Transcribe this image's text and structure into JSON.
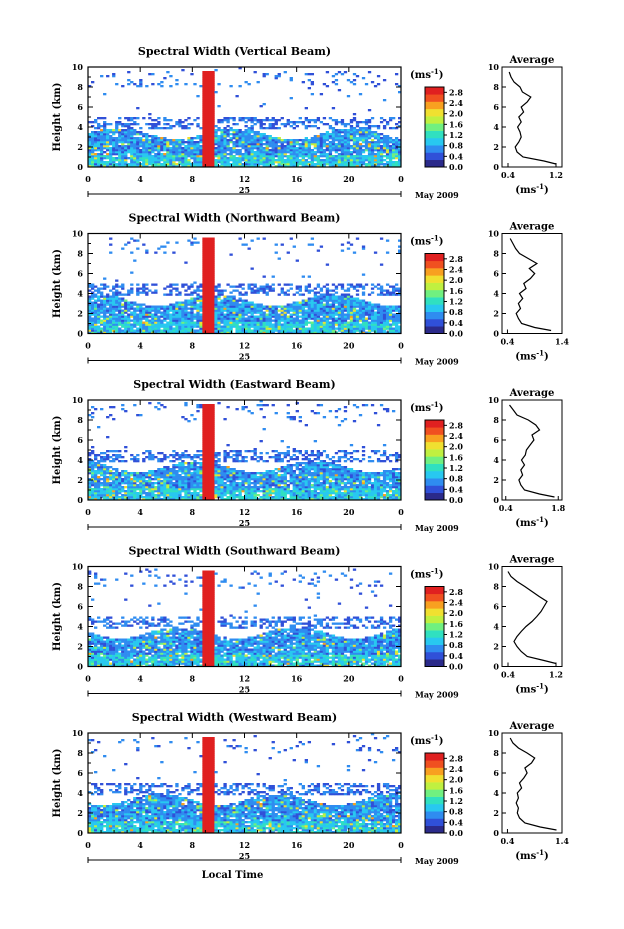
{
  "chart_data": {
    "type": "heatmap",
    "shared": {
      "xlabel": "Local Time",
      "ylabel": "Height (km)",
      "x_ticks": [
        "0",
        "4",
        "8",
        "12",
        "16",
        "20",
        "0"
      ],
      "x_range": [
        0,
        24
      ],
      "y_ticks": [
        "0",
        "2",
        "4",
        "6",
        "8",
        "10"
      ],
      "y_range": [
        0,
        10
      ],
      "day_label": "25",
      "month_label": "May 2009",
      "colorbar_unit": "(ms",
      "colorbar_unit_exp": "-1",
      "colorbar_unit_close": ")",
      "colorbar_ticks": [
        "0.0",
        "0.4",
        "0.8",
        "1.2",
        "1.6",
        "2.0",
        "2.4",
        "2.8"
      ],
      "colorbar_range": [
        0,
        3.0
      ],
      "colormap": [
        "#2b2a8a",
        "#3050d8",
        "#2f8cf0",
        "#28c8f0",
        "#30e0c0",
        "#70f080",
        "#c0f040",
        "#f0e030",
        "#f8a020",
        "#f05020",
        "#e02020"
      ],
      "avg_title": "Average",
      "avg_xlabel": "(ms",
      "avg_xlabel_exp": "-1",
      "avg_xlabel_close": ")",
      "avg_y_ticks": [
        "0",
        "2",
        "4",
        "6",
        "8",
        "10"
      ],
      "avg_y_range": [
        0,
        10
      ]
    },
    "panels": [
      {
        "title": "Spectral Width (Vertical Beam)",
        "avg_x_ticks": [
          "0.4",
          "1.2"
        ],
        "avg_x_range": [
          0.3,
          1.3
        ],
        "avg_profile": [
          [
            1.2,
            0.3
          ],
          [
            1.0,
            0.6
          ],
          [
            0.65,
            1.0
          ],
          [
            0.55,
            1.5
          ],
          [
            0.52,
            2.0
          ],
          [
            0.58,
            2.5
          ],
          [
            0.62,
            3.0
          ],
          [
            0.6,
            3.5
          ],
          [
            0.56,
            4.0
          ],
          [
            0.62,
            4.5
          ],
          [
            0.58,
            5.0
          ],
          [
            0.66,
            5.5
          ],
          [
            0.62,
            6.0
          ],
          [
            0.72,
            6.5
          ],
          [
            0.78,
            7.0
          ],
          [
            0.64,
            7.5
          ],
          [
            0.6,
            8.0
          ],
          [
            0.5,
            8.5
          ],
          [
            0.45,
            9.0
          ],
          [
            0.42,
            9.5
          ]
        ]
      },
      {
        "title": "Spectral Width (Northward Beam)",
        "avg_x_ticks": [
          "0.4",
          "1.4"
        ],
        "avg_x_range": [
          0.3,
          1.4
        ],
        "avg_profile": [
          [
            1.2,
            0.3
          ],
          [
            0.9,
            0.6
          ],
          [
            0.66,
            1.0
          ],
          [
            0.6,
            1.5
          ],
          [
            0.56,
            2.0
          ],
          [
            0.64,
            2.5
          ],
          [
            0.6,
            3.0
          ],
          [
            0.68,
            3.5
          ],
          [
            0.62,
            4.0
          ],
          [
            0.74,
            4.5
          ],
          [
            0.7,
            5.0
          ],
          [
            0.82,
            5.5
          ],
          [
            0.9,
            6.0
          ],
          [
            0.8,
            6.5
          ],
          [
            0.94,
            7.0
          ],
          [
            0.78,
            7.5
          ],
          [
            0.62,
            8.0
          ],
          [
            0.55,
            8.5
          ],
          [
            0.5,
            9.0
          ],
          [
            0.45,
            9.5
          ]
        ]
      },
      {
        "title": "Spectral Width (Eastward Beam)",
        "avg_x_ticks": [
          "0.4",
          "1.8"
        ],
        "avg_x_range": [
          0.3,
          1.9
        ],
        "avg_profile": [
          [
            1.7,
            0.3
          ],
          [
            1.3,
            0.6
          ],
          [
            0.9,
            1.0
          ],
          [
            0.8,
            1.5
          ],
          [
            0.75,
            2.0
          ],
          [
            0.85,
            2.5
          ],
          [
            0.8,
            3.0
          ],
          [
            0.9,
            3.5
          ],
          [
            0.82,
            4.0
          ],
          [
            0.92,
            4.5
          ],
          [
            0.95,
            5.0
          ],
          [
            1.05,
            5.5
          ],
          [
            1.15,
            6.0
          ],
          [
            1.1,
            6.5
          ],
          [
            1.3,
            7.0
          ],
          [
            1.2,
            7.5
          ],
          [
            1.0,
            8.0
          ],
          [
            0.7,
            8.5
          ],
          [
            0.6,
            9.0
          ],
          [
            0.5,
            9.5
          ]
        ]
      },
      {
        "title": "Spectral Width (Southward Beam)",
        "avg_x_ticks": [
          "0.4",
          "1.2"
        ],
        "avg_x_range": [
          0.3,
          1.3
        ],
        "avg_profile": [
          [
            1.2,
            0.3
          ],
          [
            1.0,
            0.6
          ],
          [
            0.72,
            1.0
          ],
          [
            0.62,
            1.5
          ],
          [
            0.55,
            2.0
          ],
          [
            0.5,
            2.5
          ],
          [
            0.55,
            3.0
          ],
          [
            0.62,
            3.5
          ],
          [
            0.7,
            4.0
          ],
          [
            0.8,
            4.5
          ],
          [
            0.88,
            5.0
          ],
          [
            0.95,
            5.5
          ],
          [
            1.0,
            6.0
          ],
          [
            1.05,
            6.5
          ],
          [
            0.92,
            7.0
          ],
          [
            0.8,
            7.5
          ],
          [
            0.68,
            8.0
          ],
          [
            0.55,
            8.5
          ],
          [
            0.45,
            9.0
          ],
          [
            0.4,
            9.5
          ]
        ]
      },
      {
        "title": "Spectral Width (Westward Beam)",
        "avg_x_ticks": [
          "0.4",
          "1.4"
        ],
        "avg_x_range": [
          0.3,
          1.4
        ],
        "avg_profile": [
          [
            1.3,
            0.3
          ],
          [
            1.0,
            0.6
          ],
          [
            0.72,
            1.0
          ],
          [
            0.62,
            1.5
          ],
          [
            0.58,
            2.0
          ],
          [
            0.6,
            2.5
          ],
          [
            0.56,
            3.0
          ],
          [
            0.6,
            3.5
          ],
          [
            0.58,
            4.0
          ],
          [
            0.66,
            4.5
          ],
          [
            0.62,
            5.0
          ],
          [
            0.7,
            5.5
          ],
          [
            0.76,
            6.0
          ],
          [
            0.72,
            6.5
          ],
          [
            0.84,
            7.0
          ],
          [
            0.9,
            7.5
          ],
          [
            0.76,
            8.0
          ],
          [
            0.6,
            8.5
          ],
          [
            0.5,
            9.0
          ],
          [
            0.45,
            9.5
          ]
        ]
      }
    ]
  }
}
